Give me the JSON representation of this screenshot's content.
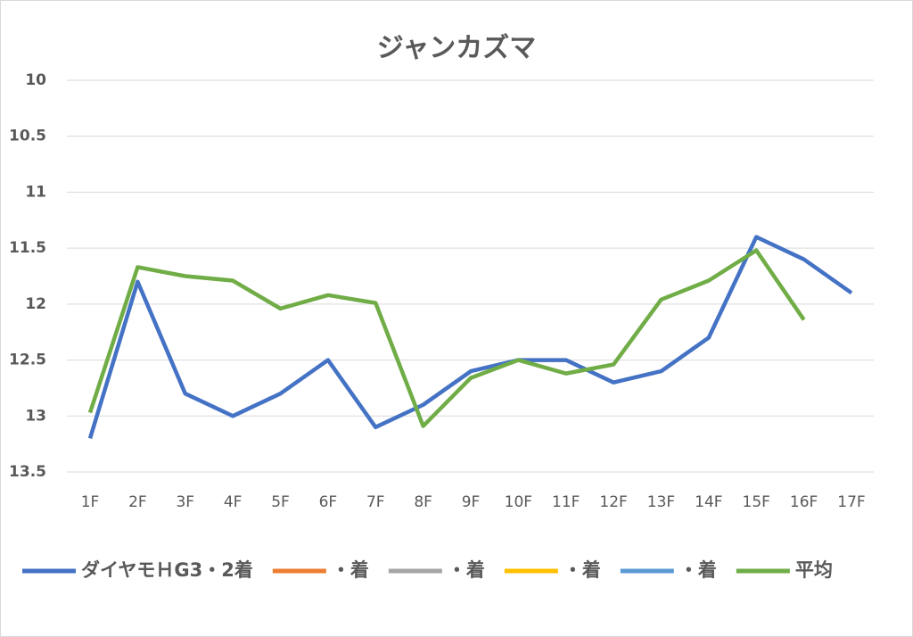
{
  "chart_data": {
    "type": "line",
    "title": "ジャンカズマ",
    "categories": [
      "1F",
      "2F",
      "3F",
      "4F",
      "5F",
      "6F",
      "7F",
      "8F",
      "9F",
      "10F",
      "11F",
      "12F",
      "13F",
      "14F",
      "15F",
      "16F",
      "17F"
    ],
    "series": [
      {
        "name": "ダイヤモＨG3・2着",
        "color": "#4472c4",
        "values": [
          13.2,
          11.8,
          12.8,
          13.0,
          12.8,
          12.5,
          13.1,
          12.9,
          12.6,
          12.5,
          12.5,
          12.7,
          12.6,
          12.3,
          11.4,
          11.6,
          11.9
        ]
      },
      {
        "name": "・着",
        "color": "#ed7d31",
        "values": [
          null,
          null,
          null,
          null,
          null,
          null,
          null,
          null,
          null,
          null,
          null,
          null,
          null,
          null,
          null,
          null,
          null
        ]
      },
      {
        "name": "・着",
        "color": "#a5a5a5",
        "values": [
          null,
          null,
          null,
          null,
          null,
          null,
          null,
          null,
          null,
          null,
          null,
          null,
          null,
          null,
          null,
          null,
          null
        ]
      },
      {
        "name": "・着",
        "color": "#ffc000",
        "values": [
          null,
          null,
          null,
          null,
          null,
          null,
          null,
          null,
          null,
          null,
          null,
          null,
          null,
          null,
          null,
          null,
          null
        ]
      },
      {
        "name": "・着",
        "color": "#5b9bd5",
        "values": [
          null,
          null,
          null,
          null,
          null,
          null,
          null,
          null,
          null,
          null,
          null,
          null,
          null,
          null,
          null,
          null,
          null
        ]
      },
      {
        "name": "平均",
        "color": "#70ad47",
        "values": [
          12.97,
          11.67,
          11.75,
          11.79,
          12.04,
          11.92,
          11.99,
          13.09,
          12.66,
          12.5,
          12.62,
          12.54,
          11.96,
          11.79,
          11.52,
          12.14,
          null
        ]
      }
    ],
    "ylim": [
      10,
      13.5
    ],
    "yticks": [
      10,
      10.5,
      11,
      11.5,
      12,
      12.5,
      13,
      13.5
    ],
    "y_inverted": true,
    "grid": true,
    "legend": "bottom"
  }
}
